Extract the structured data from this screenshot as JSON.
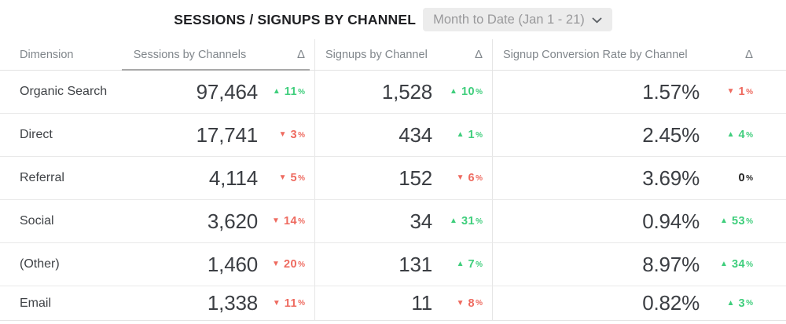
{
  "widget": {
    "title": "SESSIONS / SIGNUPS BY CHANNEL",
    "date_range": {
      "label": "Month to Date (Jan 1 - 21)"
    }
  },
  "table": {
    "columns": [
      "Dimension",
      "Sessions by Channels",
      "Δ",
      "Signups by Channel",
      "Δ",
      "Signup Conversion Rate by Channel",
      "Δ"
    ],
    "rows": [
      {
        "dimension": "Organic Search",
        "sessions": {
          "value": "97,464",
          "delta": {
            "direction": "up",
            "value": "11"
          }
        },
        "signups": {
          "value": "1,528",
          "delta": {
            "direction": "up",
            "value": "10"
          }
        },
        "conversion": {
          "value": "1.57%",
          "delta": {
            "direction": "down",
            "value": "1"
          }
        }
      },
      {
        "dimension": "Direct",
        "sessions": {
          "value": "17,741",
          "delta": {
            "direction": "down",
            "value": "3"
          }
        },
        "signups": {
          "value": "434",
          "delta": {
            "direction": "up",
            "value": "1"
          }
        },
        "conversion": {
          "value": "2.45%",
          "delta": {
            "direction": "up",
            "value": "4"
          }
        }
      },
      {
        "dimension": "Referral",
        "sessions": {
          "value": "4,114",
          "delta": {
            "direction": "down",
            "value": "5"
          }
        },
        "signups": {
          "value": "152",
          "delta": {
            "direction": "down",
            "value": "6"
          }
        },
        "conversion": {
          "value": "3.69%",
          "delta": {
            "direction": "none",
            "value": "0"
          }
        }
      },
      {
        "dimension": "Social",
        "sessions": {
          "value": "3,620",
          "delta": {
            "direction": "down",
            "value": "14"
          }
        },
        "signups": {
          "value": "34",
          "delta": {
            "direction": "up",
            "value": "31"
          }
        },
        "conversion": {
          "value": "0.94%",
          "delta": {
            "direction": "up",
            "value": "53"
          }
        }
      },
      {
        "dimension": "(Other)",
        "sessions": {
          "value": "1,460",
          "delta": {
            "direction": "down",
            "value": "20"
          }
        },
        "signups": {
          "value": "131",
          "delta": {
            "direction": "up",
            "value": "7"
          }
        },
        "conversion": {
          "value": "8.97%",
          "delta": {
            "direction": "up",
            "value": "34"
          }
        }
      },
      {
        "dimension": "Email",
        "sessions": {
          "value": "1,338",
          "delta": {
            "direction": "down",
            "value": "11"
          }
        },
        "signups": {
          "value": "11",
          "delta": {
            "direction": "down",
            "value": "8"
          }
        },
        "conversion": {
          "value": "0.82%",
          "delta": {
            "direction": "up",
            "value": "3"
          }
        }
      }
    ]
  },
  "glyphs": {
    "up": "▲",
    "down": "▼",
    "percent": "%"
  },
  "colors": {
    "positive": "#3fce7c",
    "negative": "#ee6a5f",
    "neutral": "#1f1f1f"
  },
  "chart_data": {
    "type": "table",
    "title": "SESSIONS / SIGNUPS BY CHANNEL",
    "date_range": "Month to Date (Jan 1 - 21)",
    "columns": [
      "Dimension",
      "Sessions by Channels",
      "Δ",
      "Signups by Channel",
      "Δ",
      "Signup Conversion Rate by Channel",
      "Δ"
    ],
    "categories": [
      "Organic Search",
      "Direct",
      "Referral",
      "Social",
      "(Other)",
      "Email"
    ],
    "series": [
      {
        "name": "Sessions by Channels",
        "values": [
          97464,
          17741,
          4114,
          3620,
          1460,
          1338
        ],
        "delta_pct": [
          11,
          -3,
          -5,
          -14,
          -20,
          -11
        ]
      },
      {
        "name": "Signups by Channel",
        "values": [
          1528,
          434,
          152,
          34,
          131,
          11
        ],
        "delta_pct": [
          10,
          1,
          -6,
          31,
          7,
          -8
        ]
      },
      {
        "name": "Signup Conversion Rate by Channel",
        "unit": "%",
        "values": [
          1.57,
          2.45,
          3.69,
          0.94,
          8.97,
          0.82
        ],
        "delta_pct": [
          -1,
          4,
          0,
          53,
          34,
          3
        ]
      }
    ],
    "sorted_by": "Sessions by Channels",
    "sort_order": "descending"
  }
}
